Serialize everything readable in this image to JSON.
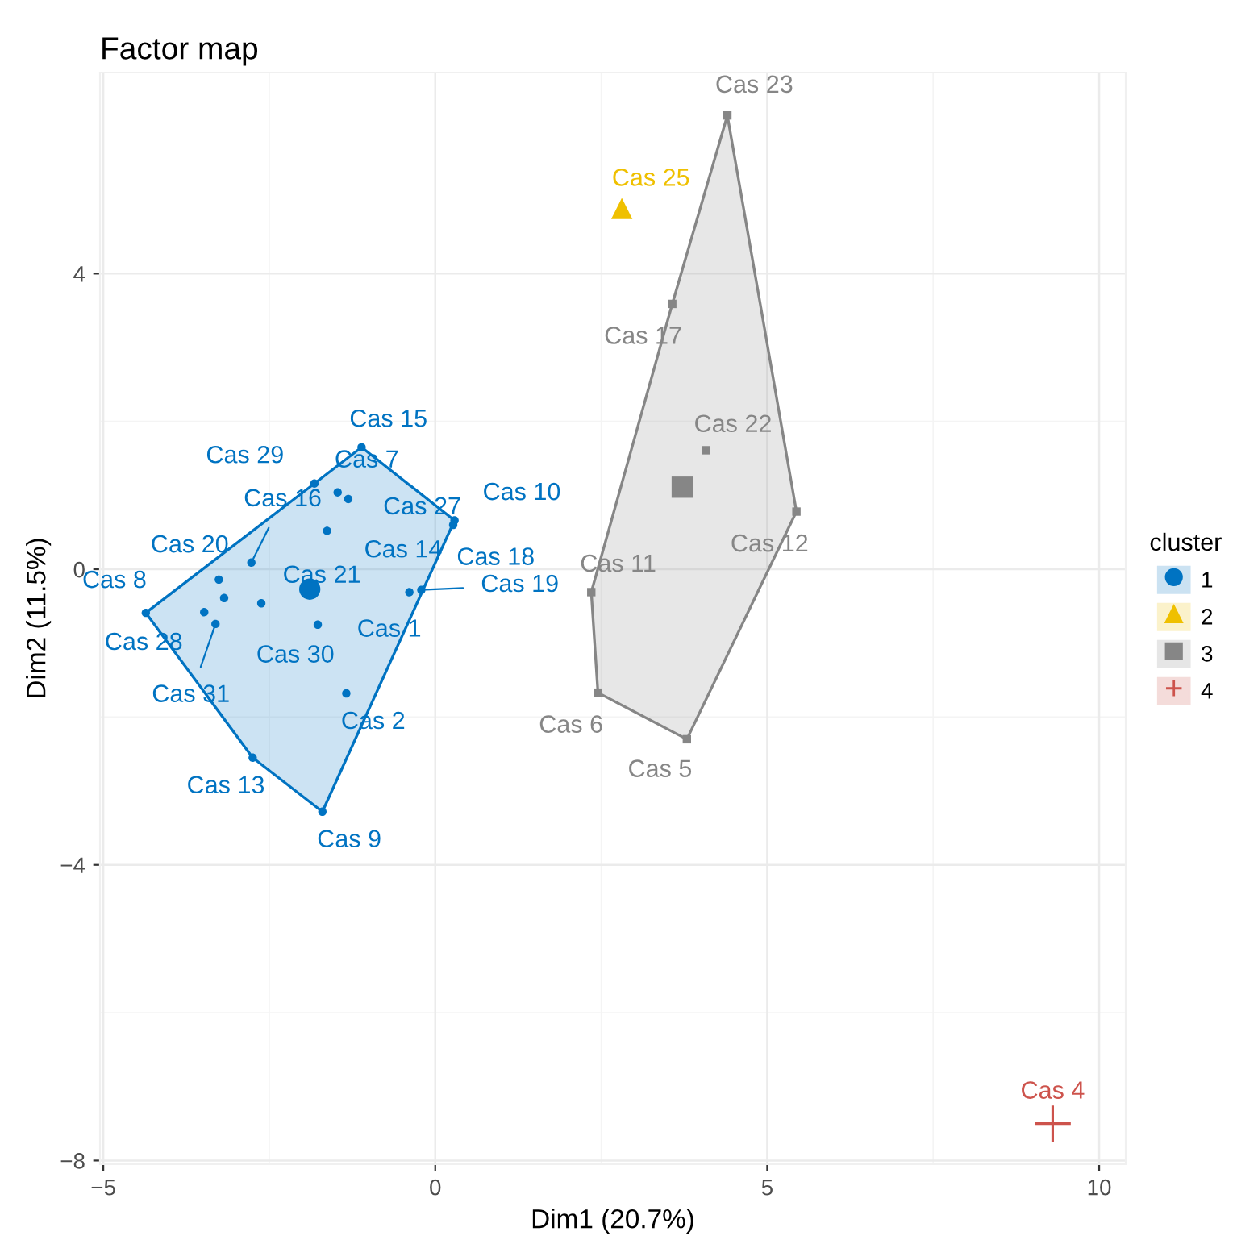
{
  "chart_data": {
    "type": "scatter",
    "title": "Factor map",
    "xlabel": "Dim1 (20.7%)",
    "ylabel": "Dim2 (11.5%)",
    "legend_title": "cluster",
    "legend": "right",
    "grid": true,
    "xlim": [
      -5.05,
      10.4
    ],
    "ylim": [
      -8.05,
      6.72
    ],
    "xticks": [
      -5,
      0,
      5,
      10
    ],
    "yticks": [
      -8,
      -4,
      0,
      4
    ],
    "series": [
      {
        "type": "area",
        "color": "#0073c2",
        "x": [
          -1.11,
          0.29,
          -1.7,
          -2.75,
          -4.36,
          -1.82
        ],
        "values": [
          1.65,
          0.66,
          -3.28,
          -2.55,
          -0.59,
          1.16
        ]
      },
      {
        "type": "area",
        "color": "#868686",
        "x": [
          4.4,
          5.44,
          3.79,
          2.45,
          2.35,
          3.57
        ],
        "values": [
          6.14,
          0.78,
          -2.3,
          -1.67,
          -0.31,
          3.59
        ]
      },
      {
        "name": "1",
        "color": "#0073c2",
        "marker": "circle",
        "x": [
          -1.11,
          -1.82,
          -1.47,
          -1.31,
          0.29,
          0.27,
          -1.63,
          -2.77,
          -3.26,
          -2.62,
          -3.18,
          -4.36,
          -3.48,
          -3.31,
          -1.77,
          -1.34,
          -0.39,
          -0.21,
          -2.75,
          -1.7
        ],
        "values": [
          1.65,
          1.16,
          1.04,
          0.95,
          0.66,
          0.6,
          0.52,
          0.09,
          -0.14,
          -0.46,
          -0.39,
          -0.59,
          -0.58,
          -0.74,
          -0.75,
          -1.68,
          -0.31,
          -0.28,
          -2.55,
          -3.28
        ],
        "value_labels": [
          "Cas 15",
          "Cas 29",
          "Cas 7",
          "Cas 27",
          "Cas 10",
          "Cas 18",
          "Cas 14",
          "Cas 16",
          "Cas 20",
          "Cas 21",
          null,
          "Cas 8",
          "Cas 28",
          "Cas 31",
          "Cas 30",
          "Cas 2",
          "Cas 1",
          "Cas 19",
          "Cas 13",
          "Cas 9"
        ]
      },
      {
        "name": "2",
        "color": "#efc000",
        "marker": "triangle",
        "x": [
          2.81
        ],
        "values": [
          4.88
        ],
        "value_labels": [
          "Cas 25"
        ]
      },
      {
        "name": "3",
        "color": "#868686",
        "marker": "square",
        "x": [
          4.4,
          3.57,
          4.08,
          5.44,
          2.35,
          2.45,
          3.79
        ],
        "values": [
          6.14,
          3.59,
          1.61,
          0.78,
          -0.31,
          -1.67,
          -2.3
        ],
        "value_labels": [
          "Cas 23",
          "Cas 17",
          "Cas 22",
          "Cas 12",
          "Cas 11",
          "Cas 6",
          "Cas 5"
        ]
      },
      {
        "name": "4",
        "color": "#cd534c",
        "marker": "cross",
        "x": [
          9.3
        ],
        "values": [
          -7.5
        ],
        "value_labels": [
          "Cas 4"
        ]
      },
      {
        "color": "#0073c2",
        "marker": "circle",
        "x": [
          -1.89
        ],
        "values": [
          -0.27
        ]
      },
      {
        "color": "#868686",
        "marker": "square",
        "x": [
          3.72
        ],
        "values": [
          1.11
        ]
      }
    ]
  }
}
